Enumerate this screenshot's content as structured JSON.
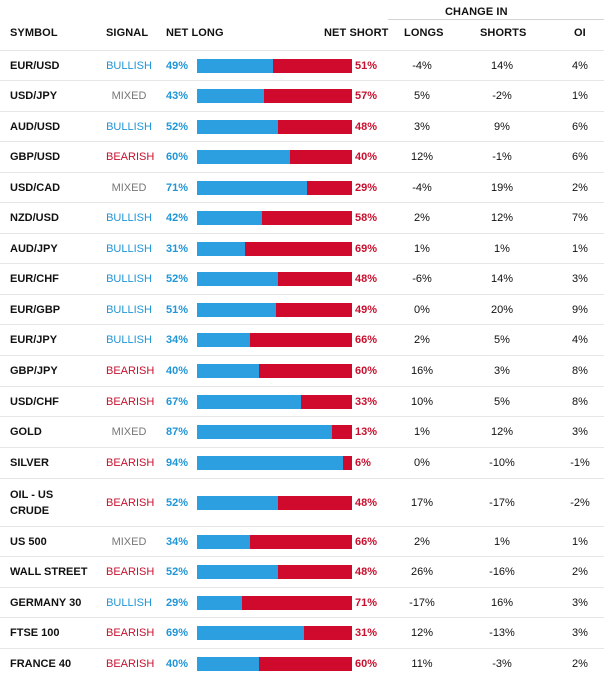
{
  "headers": {
    "symbol": "SYMBOL",
    "signal": "SIGNAL",
    "net_long": "NET LONG",
    "net_short": "NET SHORT",
    "change_in": "CHANGE IN",
    "longs": "LONGS",
    "shorts": "SHORTS",
    "oi": "OI"
  },
  "colors": {
    "long": "#2b9fdf",
    "short": "#cf0a2c",
    "bullish": "#2196d6",
    "bearish": "#c8102e",
    "mixed": "#777777"
  },
  "rows": [
    {
      "symbol": [
        "EUR/USD"
      ],
      "signal": "BULLISH",
      "signal_type": "bullish",
      "long_pct": "49%",
      "short_pct": "51%",
      "long_fraction": 0.49,
      "longs": "-4%",
      "shorts": "14%",
      "oi": "4%"
    },
    {
      "symbol": [
        "USD/JPY"
      ],
      "signal": "MIXED",
      "signal_type": "mixed",
      "long_pct": "43%",
      "short_pct": "57%",
      "long_fraction": 0.43,
      "longs": "5%",
      "shorts": "-2%",
      "oi": "1%"
    },
    {
      "symbol": [
        "AUD/USD"
      ],
      "signal": "BULLISH",
      "signal_type": "bullish",
      "long_pct": "52%",
      "short_pct": "48%",
      "long_fraction": 0.52,
      "longs": "3%",
      "shorts": "9%",
      "oi": "6%"
    },
    {
      "symbol": [
        "GBP/USD"
      ],
      "signal": "BEARISH",
      "signal_type": "bearish",
      "long_pct": "60%",
      "short_pct": "40%",
      "long_fraction": 0.6,
      "longs": "12%",
      "shorts": "-1%",
      "oi": "6%"
    },
    {
      "symbol": [
        "USD/CAD"
      ],
      "signal": "MIXED",
      "signal_type": "mixed",
      "long_pct": "71%",
      "short_pct": "29%",
      "long_fraction": 0.71,
      "longs": "-4%",
      "shorts": "19%",
      "oi": "2%"
    },
    {
      "symbol": [
        "NZD/USD"
      ],
      "signal": "BULLISH",
      "signal_type": "bullish",
      "long_pct": "42%",
      "short_pct": "58%",
      "long_fraction": 0.42,
      "longs": "2%",
      "shorts": "12%",
      "oi": "7%"
    },
    {
      "symbol": [
        "AUD/JPY"
      ],
      "signal": "BULLISH",
      "signal_type": "bullish",
      "long_pct": "31%",
      "short_pct": "69%",
      "long_fraction": 0.31,
      "longs": "1%",
      "shorts": "1%",
      "oi": "1%"
    },
    {
      "symbol": [
        "EUR/CHF"
      ],
      "signal": "BULLISH",
      "signal_type": "bullish",
      "long_pct": "52%",
      "short_pct": "48%",
      "long_fraction": 0.52,
      "longs": "-6%",
      "shorts": "14%",
      "oi": "3%"
    },
    {
      "symbol": [
        "EUR/GBP"
      ],
      "signal": "BULLISH",
      "signal_type": "bullish",
      "long_pct": "51%",
      "short_pct": "49%",
      "long_fraction": 0.51,
      "longs": "0%",
      "shorts": "20%",
      "oi": "9%"
    },
    {
      "symbol": [
        "EUR/JPY"
      ],
      "signal": "BULLISH",
      "signal_type": "bullish",
      "long_pct": "34%",
      "short_pct": "66%",
      "long_fraction": 0.34,
      "longs": "2%",
      "shorts": "5%",
      "oi": "4%"
    },
    {
      "symbol": [
        "GBP/JPY"
      ],
      "signal": "BEARISH",
      "signal_type": "bearish",
      "long_pct": "40%",
      "short_pct": "60%",
      "long_fraction": 0.4,
      "longs": "16%",
      "shorts": "3%",
      "oi": "8%"
    },
    {
      "symbol": [
        "USD/CHF"
      ],
      "signal": "BEARISH",
      "signal_type": "bearish",
      "long_pct": "67%",
      "short_pct": "33%",
      "long_fraction": 0.67,
      "longs": "10%",
      "shorts": "5%",
      "oi": "8%"
    },
    {
      "symbol": [
        "GOLD"
      ],
      "signal": "MIXED",
      "signal_type": "mixed",
      "long_pct": "87%",
      "short_pct": "13%",
      "long_fraction": 0.87,
      "longs": "1%",
      "shorts": "12%",
      "oi": "3%"
    },
    {
      "symbol": [
        "SILVER"
      ],
      "signal": "BEARISH",
      "signal_type": "bearish",
      "long_pct": "94%",
      "short_pct": "6%",
      "long_fraction": 0.94,
      "longs": "0%",
      "shorts": "-10%",
      "oi": "-1%"
    },
    {
      "symbol": [
        "OIL - US",
        "CRUDE"
      ],
      "signal": "BEARISH",
      "signal_type": "bearish",
      "long_pct": "52%",
      "short_pct": "48%",
      "long_fraction": 0.52,
      "longs": "17%",
      "shorts": "-17%",
      "oi": "-2%"
    },
    {
      "symbol": [
        "US 500"
      ],
      "signal": "MIXED",
      "signal_type": "mixed",
      "long_pct": "34%",
      "short_pct": "66%",
      "long_fraction": 0.34,
      "longs": "2%",
      "shorts": "1%",
      "oi": "1%"
    },
    {
      "symbol": [
        "WALL STREET"
      ],
      "signal": "BEARISH",
      "signal_type": "bearish",
      "long_pct": "52%",
      "short_pct": "48%",
      "long_fraction": 0.52,
      "longs": "26%",
      "shorts": "-16%",
      "oi": "2%"
    },
    {
      "symbol": [
        "GERMANY 30"
      ],
      "signal": "BULLISH",
      "signal_type": "bullish",
      "long_pct": "29%",
      "short_pct": "71%",
      "long_fraction": 0.29,
      "longs": "-17%",
      "shorts": "16%",
      "oi": "3%"
    },
    {
      "symbol": [
        "FTSE 100"
      ],
      "signal": "BEARISH",
      "signal_type": "bearish",
      "long_pct": "69%",
      "short_pct": "31%",
      "long_fraction": 0.69,
      "longs": "12%",
      "shorts": "-13%",
      "oi": "3%"
    },
    {
      "symbol": [
        "FRANCE 40"
      ],
      "signal": "BEARISH",
      "signal_type": "bearish",
      "long_pct": "40%",
      "short_pct": "60%",
      "long_fraction": 0.4,
      "longs": "11%",
      "shorts": "-3%",
      "oi": "2%"
    }
  ]
}
